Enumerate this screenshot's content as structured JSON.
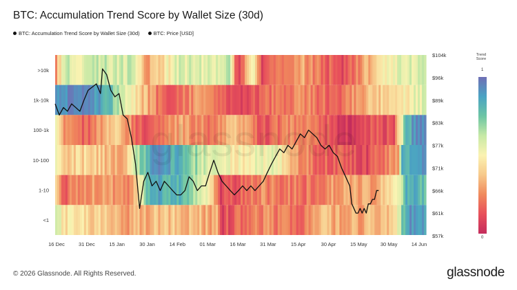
{
  "title": "BTC: Accumulation Trend Score by Wallet Size (30d)",
  "legend": [
    {
      "label": "BTC: Accumulation Trend Score by Wallet Size (30d)"
    },
    {
      "label": "BTC: Price [USD]"
    }
  ],
  "footer": {
    "copyright": "© 2026 Glassnode. All Rights Reserved.",
    "logo": "glassnode"
  },
  "watermark": "glassnode",
  "colorbar": {
    "title_line1": "Trend",
    "title_line2": "Score",
    "max_label": "1",
    "min_label": "0"
  },
  "chart_data": {
    "type": "heatmap",
    "rows": [
      ">10k",
      "1k-10k",
      "100-1k",
      "10-100",
      "1-10",
      "<1"
    ],
    "x_ticks": [
      "16 Dec",
      "31 Dec",
      "15 Jan",
      "30 Jan",
      "14 Feb",
      "01 Mar",
      "16 Mar",
      "31 Mar",
      "15 Apr",
      "30 Apr",
      "15 May",
      "30 May",
      "14 Jun"
    ],
    "price_ticks": [
      "$104k",
      "$96k",
      "$89k",
      "$83k",
      "$77k",
      "$71k",
      "$66k",
      "$61k",
      "$57k"
    ],
    "price_axis_values": [
      104,
      96,
      89,
      83,
      77,
      71,
      66,
      61,
      57
    ],
    "price_scale": "log",
    "colorscale": [
      "#c42d5c",
      "#e8505b",
      "#f08a5d",
      "#f7c98b",
      "#fbf3b2",
      "#c7e9a6",
      "#6cc5a4",
      "#4aa3c3",
      "#6f6fb5"
    ],
    "score_segments": {
      ">10k": [
        [
          0,
          0.3
        ],
        [
          4,
          0.62
        ],
        [
          12,
          0.55
        ],
        [
          20,
          0.62
        ],
        [
          28,
          0.6
        ],
        [
          36,
          0.6
        ],
        [
          44,
          0.3
        ],
        [
          60,
          0.58
        ],
        [
          72,
          0.55
        ],
        [
          84,
          0.6
        ],
        [
          88,
          0.1
        ],
        [
          96,
          0.5
        ],
        [
          100,
          0.08
        ],
        [
          120,
          0.3
        ],
        [
          138,
          0.1
        ],
        [
          152,
          0.35
        ],
        [
          164,
          0.55
        ],
        [
          180,
          0.58
        ]
      ],
      "1k-10k": [
        [
          0,
          0.95
        ],
        [
          4,
          0.92
        ],
        [
          16,
          0.95
        ],
        [
          24,
          0.85
        ],
        [
          40,
          0.42
        ],
        [
          52,
          0.15
        ],
        [
          70,
          0.3
        ],
        [
          88,
          0.1
        ],
        [
          104,
          0.2
        ],
        [
          120,
          0.25
        ],
        [
          136,
          0.15
        ],
        [
          150,
          0.35
        ],
        [
          166,
          0.45
        ],
        [
          176,
          0.55
        ],
        [
          180,
          0.55
        ]
      ],
      "100-1k": [
        [
          0,
          0.48
        ],
        [
          3,
          0.3
        ],
        [
          16,
          0.15
        ],
        [
          28,
          0.42
        ],
        [
          44,
          0.1
        ],
        [
          60,
          0.3
        ],
        [
          76,
          0.22
        ],
        [
          88,
          0.35
        ],
        [
          100,
          0.12
        ],
        [
          114,
          0.25
        ],
        [
          128,
          0.2
        ],
        [
          140,
          0.05
        ],
        [
          156,
          0.15
        ],
        [
          164,
          0.1
        ],
        [
          170,
          0.82
        ],
        [
          176,
          0.92
        ],
        [
          180,
          0.92
        ]
      ],
      "10-100": [
        [
          0,
          0.5
        ],
        [
          4,
          0.38
        ],
        [
          16,
          0.42
        ],
        [
          32,
          0.3
        ],
        [
          46,
          0.9
        ],
        [
          52,
          0.88
        ],
        [
          60,
          0.82
        ],
        [
          74,
          0.55
        ],
        [
          88,
          0.5
        ],
        [
          106,
          0.55
        ],
        [
          116,
          0.3
        ],
        [
          126,
          0.2
        ],
        [
          140,
          0.15
        ],
        [
          152,
          0.1
        ],
        [
          166,
          0.3
        ],
        [
          168,
          0.85
        ],
        [
          180,
          0.88
        ]
      ],
      "1-10": [
        [
          0,
          0.35
        ],
        [
          4,
          0.18
        ],
        [
          20,
          0.3
        ],
        [
          36,
          0.25
        ],
        [
          46,
          0.85
        ],
        [
          60,
          0.8
        ],
        [
          74,
          0.55
        ],
        [
          80,
          0.1
        ],
        [
          100,
          0.25
        ],
        [
          120,
          0.2
        ],
        [
          140,
          0.3
        ],
        [
          156,
          0.3
        ],
        [
          166,
          0.55
        ],
        [
          170,
          0.82
        ],
        [
          180,
          0.8
        ]
      ],
      "<1": [
        [
          0,
          0.6
        ],
        [
          4,
          0.45
        ],
        [
          20,
          0.4
        ],
        [
          34,
          0.3
        ],
        [
          46,
          0.35
        ],
        [
          60,
          0.38
        ],
        [
          78,
          0.3
        ],
        [
          80,
          0.1
        ],
        [
          100,
          0.25
        ],
        [
          120,
          0.2
        ],
        [
          130,
          0.35
        ],
        [
          140,
          0.3
        ],
        [
          160,
          0.35
        ],
        [
          166,
          0.55
        ],
        [
          170,
          0.88
        ],
        [
          180,
          0.9
        ]
      ]
    },
    "price_series": [
      [
        0,
        88
      ],
      [
        2,
        85
      ],
      [
        4,
        87
      ],
      [
        6,
        86
      ],
      [
        8,
        88
      ],
      [
        10,
        87
      ],
      [
        12,
        86
      ],
      [
        14,
        89
      ],
      [
        16,
        92
      ],
      [
        18,
        93
      ],
      [
        20,
        94
      ],
      [
        22,
        91
      ],
      [
        23,
        99
      ],
      [
        25,
        97
      ],
      [
        27,
        92
      ],
      [
        29,
        90
      ],
      [
        31,
        91
      ],
      [
        33,
        85
      ],
      [
        35,
        84
      ],
      [
        37,
        79
      ],
      [
        39,
        72
      ],
      [
        41,
        62
      ],
      [
        43,
        68
      ],
      [
        45,
        70
      ],
      [
        47,
        67
      ],
      [
        49,
        68
      ],
      [
        51,
        66
      ],
      [
        53,
        68
      ],
      [
        55,
        67
      ],
      [
        57,
        66
      ],
      [
        59,
        65
      ],
      [
        61,
        65
      ],
      [
        63,
        66
      ],
      [
        65,
        69
      ],
      [
        67,
        68
      ],
      [
        69,
        66
      ],
      [
        71,
        67
      ],
      [
        73,
        67
      ],
      [
        75,
        70
      ],
      [
        77,
        73
      ],
      [
        79,
        70
      ],
      [
        81,
        68
      ],
      [
        83,
        67
      ],
      [
        85,
        66
      ],
      [
        87,
        65
      ],
      [
        89,
        66
      ],
      [
        91,
        67
      ],
      [
        93,
        66
      ],
      [
        95,
        67
      ],
      [
        97,
        66
      ],
      [
        99,
        67
      ],
      [
        101,
        68
      ],
      [
        103,
        70
      ],
      [
        105,
        72
      ],
      [
        107,
        74
      ],
      [
        109,
        76
      ],
      [
        111,
        75
      ],
      [
        113,
        77
      ],
      [
        115,
        76
      ],
      [
        117,
        78
      ],
      [
        119,
        80
      ],
      [
        121,
        79
      ],
      [
        123,
        81
      ],
      [
        125,
        80
      ],
      [
        127,
        79
      ],
      [
        129,
        77
      ],
      [
        131,
        76
      ],
      [
        133,
        77
      ],
      [
        135,
        75
      ],
      [
        137,
        74
      ],
      [
        139,
        71
      ],
      [
        141,
        69
      ],
      [
        143,
        67
      ],
      [
        144,
        63
      ],
      [
        145,
        62
      ],
      [
        146,
        61
      ],
      [
        147,
        61
      ],
      [
        148,
        62
      ],
      [
        149,
        61
      ],
      [
        150,
        62
      ],
      [
        151,
        61
      ],
      [
        152,
        63
      ],
      [
        153,
        63
      ],
      [
        154,
        64
      ],
      [
        155,
        64
      ],
      [
        156,
        66
      ],
      [
        157,
        66
      ]
    ]
  }
}
